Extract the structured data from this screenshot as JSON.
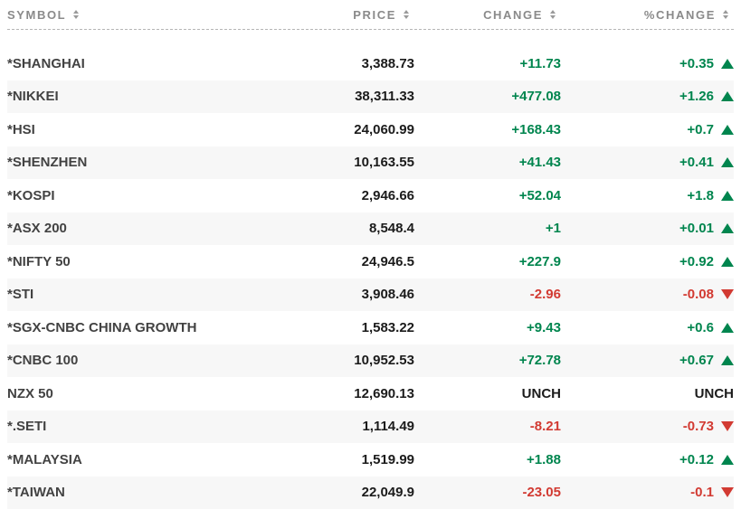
{
  "colors": {
    "positive": "#00854e",
    "negative": "#d23a32",
    "neutral_text": "#1b1b1b",
    "header_text": "#8a8a8a",
    "row_alt_bg": "#f7f7f7",
    "symbol_text": "#424242",
    "sort_icon": "#9a9a9a"
  },
  "icons": {
    "sort": "sort-arrows (stacked up/down triangles)",
    "up": "triangle-up",
    "down": "triangle-down"
  },
  "table": {
    "headers": [
      {
        "label": "SYMBOL",
        "sortable": true
      },
      {
        "label": "PRICE",
        "sortable": true
      },
      {
        "label": "CHANGE",
        "sortable": true
      },
      {
        "label": "%CHANGE",
        "sortable": true
      }
    ],
    "rows": [
      {
        "symbol": "*SHANGHAI",
        "price": "3,388.73",
        "change": "+11.73",
        "pct_change": "+0.35",
        "direction": "up"
      },
      {
        "symbol": "*NIKKEI",
        "price": "38,311.33",
        "change": "+477.08",
        "pct_change": "+1.26",
        "direction": "up"
      },
      {
        "symbol": "*HSI",
        "price": "24,060.99",
        "change": "+168.43",
        "pct_change": "+0.7",
        "direction": "up"
      },
      {
        "symbol": "*SHENZHEN",
        "price": "10,163.55",
        "change": "+41.43",
        "pct_change": "+0.41",
        "direction": "up"
      },
      {
        "symbol": "*KOSPI",
        "price": "2,946.66",
        "change": "+52.04",
        "pct_change": "+1.8",
        "direction": "up"
      },
      {
        "symbol": "*ASX 200",
        "price": "8,548.4",
        "change": "+1",
        "pct_change": "+0.01",
        "direction": "up"
      },
      {
        "symbol": "*NIFTY 50",
        "price": "24,946.5",
        "change": "+227.9",
        "pct_change": "+0.92",
        "direction": "up"
      },
      {
        "symbol": "*STI",
        "price": "3,908.46",
        "change": "-2.96",
        "pct_change": "-0.08",
        "direction": "down"
      },
      {
        "symbol": "*SGX-CNBC CHINA GROWTH",
        "price": "1,583.22",
        "change": "+9.43",
        "pct_change": "+0.6",
        "direction": "up"
      },
      {
        "symbol": "*CNBC 100",
        "price": "10,952.53",
        "change": "+72.78",
        "pct_change": "+0.67",
        "direction": "up"
      },
      {
        "symbol": "NZX 50",
        "price": "12,690.13",
        "change": "UNCH",
        "pct_change": "UNCH",
        "direction": "unch"
      },
      {
        "symbol": "*.SETI",
        "price": "1,114.49",
        "change": "-8.21",
        "pct_change": "-0.73",
        "direction": "down"
      },
      {
        "symbol": "*MALAYSIA",
        "price": "1,519.99",
        "change": "+1.88",
        "pct_change": "+0.12",
        "direction": "up"
      },
      {
        "symbol": "*TAIWAN",
        "price": "22,049.9",
        "change": "-23.05",
        "pct_change": "-0.1",
        "direction": "down"
      }
    ]
  }
}
